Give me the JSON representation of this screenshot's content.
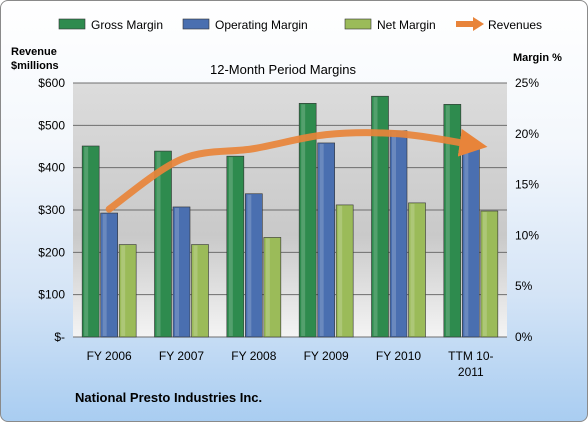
{
  "chart_data": {
    "type": "bar",
    "title": "12-Month Period Margins",
    "categories": [
      "FY 2006",
      "FY 2007",
      "FY 2008",
      "FY 2009",
      "FY 2010",
      "TTM 10-2011"
    ],
    "category_label_lines": [
      [
        "FY 2006"
      ],
      [
        "FY 2007"
      ],
      [
        "FY 2008"
      ],
      [
        "FY 2009"
      ],
      [
        "FY 2010"
      ],
      [
        "TTM 10-",
        "2011"
      ]
    ],
    "left_axis": {
      "label_lines": [
        "Revenue",
        "$millions"
      ],
      "range": [
        0,
        600
      ],
      "ticks": [
        0,
        100,
        200,
        300,
        400,
        500,
        600
      ],
      "tick_labels": [
        "$-",
        "$100",
        "$200",
        "$300",
        "$400",
        "$500",
        "$600"
      ]
    },
    "right_axis": {
      "label": "Margin %",
      "range": [
        0,
        25
      ],
      "ticks": [
        0,
        5,
        10,
        15,
        20,
        25
      ],
      "tick_labels": [
        "0%",
        "5%",
        "10%",
        "15%",
        "20%",
        "25%"
      ]
    },
    "series": [
      {
        "name": "Gross Margin",
        "kind": "bar",
        "axis": "right",
        "color": "#2e8b4e",
        "values": [
          18.8,
          18.3,
          17.8,
          23.0,
          23.7,
          22.9
        ]
      },
      {
        "name": "Operating Margin",
        "kind": "bar",
        "axis": "right",
        "color": "#4a6fb0",
        "values": [
          12.2,
          12.8,
          14.1,
          19.1,
          20.3,
          19.0
        ]
      },
      {
        "name": "Net Margin",
        "kind": "bar",
        "axis": "right",
        "color": "#9bbb59",
        "values": [
          9.1,
          9.1,
          9.8,
          13.0,
          13.2,
          12.4
        ]
      },
      {
        "name": "Revenues",
        "kind": "line",
        "axis": "left",
        "color": "#e8843a",
        "values": [
          302,
          420,
          445,
          478,
          480,
          455
        ]
      }
    ],
    "grid": true,
    "legend_position": "top"
  },
  "footer": {
    "company": "National Presto Industries Inc."
  }
}
